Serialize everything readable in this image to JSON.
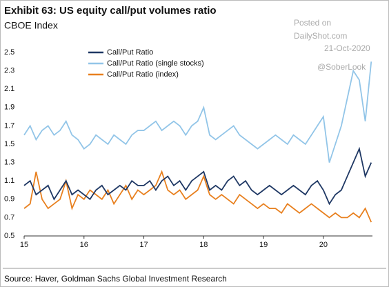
{
  "chart_data": {
    "type": "line",
    "title": "Exhibit 63: US equity call/put volumes ratio",
    "subtitle": "CBOE Index",
    "source": "Source: Haver, Goldman Sachs Global Investment Research",
    "annotations": [
      "Posted on",
      "DailyShot.com",
      "21-Oct-2020",
      "@SoberLook"
    ],
    "x": [
      15.0,
      15.1,
      15.2,
      15.3,
      15.4,
      15.5,
      15.6,
      15.7,
      15.8,
      15.9,
      16.0,
      16.1,
      16.2,
      16.3,
      16.4,
      16.5,
      16.6,
      16.7,
      16.8,
      16.9,
      17.0,
      17.1,
      17.2,
      17.3,
      17.4,
      17.5,
      17.6,
      17.7,
      17.8,
      17.9,
      18.0,
      18.1,
      18.2,
      18.3,
      18.4,
      18.5,
      18.6,
      18.7,
      18.8,
      18.9,
      19.0,
      19.1,
      19.2,
      19.3,
      19.4,
      19.5,
      19.6,
      19.7,
      19.8,
      19.9,
      20.0,
      20.1,
      20.2,
      20.3,
      20.4,
      20.5,
      20.6,
      20.7,
      20.8
    ],
    "series": [
      {
        "name": "Call/Put Ratio",
        "color": "#1f3864",
        "values": [
          1.05,
          1.1,
          0.95,
          1.0,
          1.05,
          0.9,
          1.0,
          1.1,
          0.95,
          1.0,
          0.95,
          0.9,
          1.0,
          1.05,
          0.95,
          1.0,
          1.05,
          1.0,
          1.1,
          1.05,
          1.05,
          1.1,
          1.0,
          1.1,
          1.15,
          1.05,
          1.1,
          1.0,
          1.1,
          1.15,
          1.2,
          1.0,
          1.05,
          1.0,
          1.1,
          1.15,
          1.05,
          1.1,
          1.0,
          0.95,
          1.0,
          1.05,
          1.0,
          0.95,
          1.0,
          1.05,
          1.0,
          0.95,
          1.05,
          1.1,
          1.0,
          0.85,
          0.95,
          1.0,
          1.15,
          1.3,
          1.45,
          1.15,
          1.3
        ]
      },
      {
        "name": "Call/Put Ratio (single stocks)",
        "color": "#92c5e8",
        "values": [
          1.6,
          1.7,
          1.55,
          1.65,
          1.7,
          1.6,
          1.65,
          1.75,
          1.6,
          1.55,
          1.45,
          1.5,
          1.6,
          1.55,
          1.5,
          1.6,
          1.55,
          1.5,
          1.6,
          1.65,
          1.65,
          1.7,
          1.75,
          1.65,
          1.7,
          1.75,
          1.7,
          1.6,
          1.7,
          1.75,
          1.9,
          1.6,
          1.55,
          1.6,
          1.65,
          1.7,
          1.6,
          1.55,
          1.5,
          1.45,
          1.5,
          1.55,
          1.6,
          1.55,
          1.5,
          1.6,
          1.55,
          1.5,
          1.6,
          1.7,
          1.8,
          1.3,
          1.5,
          1.7,
          2.0,
          2.3,
          2.2,
          1.75,
          2.4
        ]
      },
      {
        "name": "Call/Put Ratio (index)",
        "color": "#e8801f",
        "values": [
          0.8,
          0.85,
          1.2,
          0.9,
          0.8,
          0.85,
          0.9,
          1.1,
          0.8,
          0.95,
          0.9,
          1.0,
          0.95,
          0.9,
          1.0,
          0.85,
          0.95,
          1.05,
          0.9,
          1.0,
          0.95,
          1.0,
          1.05,
          1.2,
          1.0,
          0.95,
          1.0,
          0.9,
          0.95,
          1.0,
          1.15,
          0.95,
          0.9,
          0.95,
          0.9,
          0.85,
          0.95,
          0.9,
          0.85,
          0.8,
          0.85,
          0.8,
          0.8,
          0.75,
          0.85,
          0.8,
          0.75,
          0.8,
          0.85,
          0.8,
          0.75,
          0.7,
          0.75,
          0.7,
          0.7,
          0.75,
          0.7,
          0.8,
          0.65
        ]
      }
    ],
    "xlim": [
      15,
      20.82
    ],
    "xticks": [
      15,
      16,
      17,
      18,
      19,
      20
    ],
    "ylim": [
      0.5,
      2.5
    ],
    "yticks": [
      0.5,
      0.7,
      0.9,
      1.1,
      1.3,
      1.5,
      1.7,
      1.9,
      2.1,
      2.3,
      2.5
    ],
    "grid": false,
    "legend": "top-left"
  }
}
